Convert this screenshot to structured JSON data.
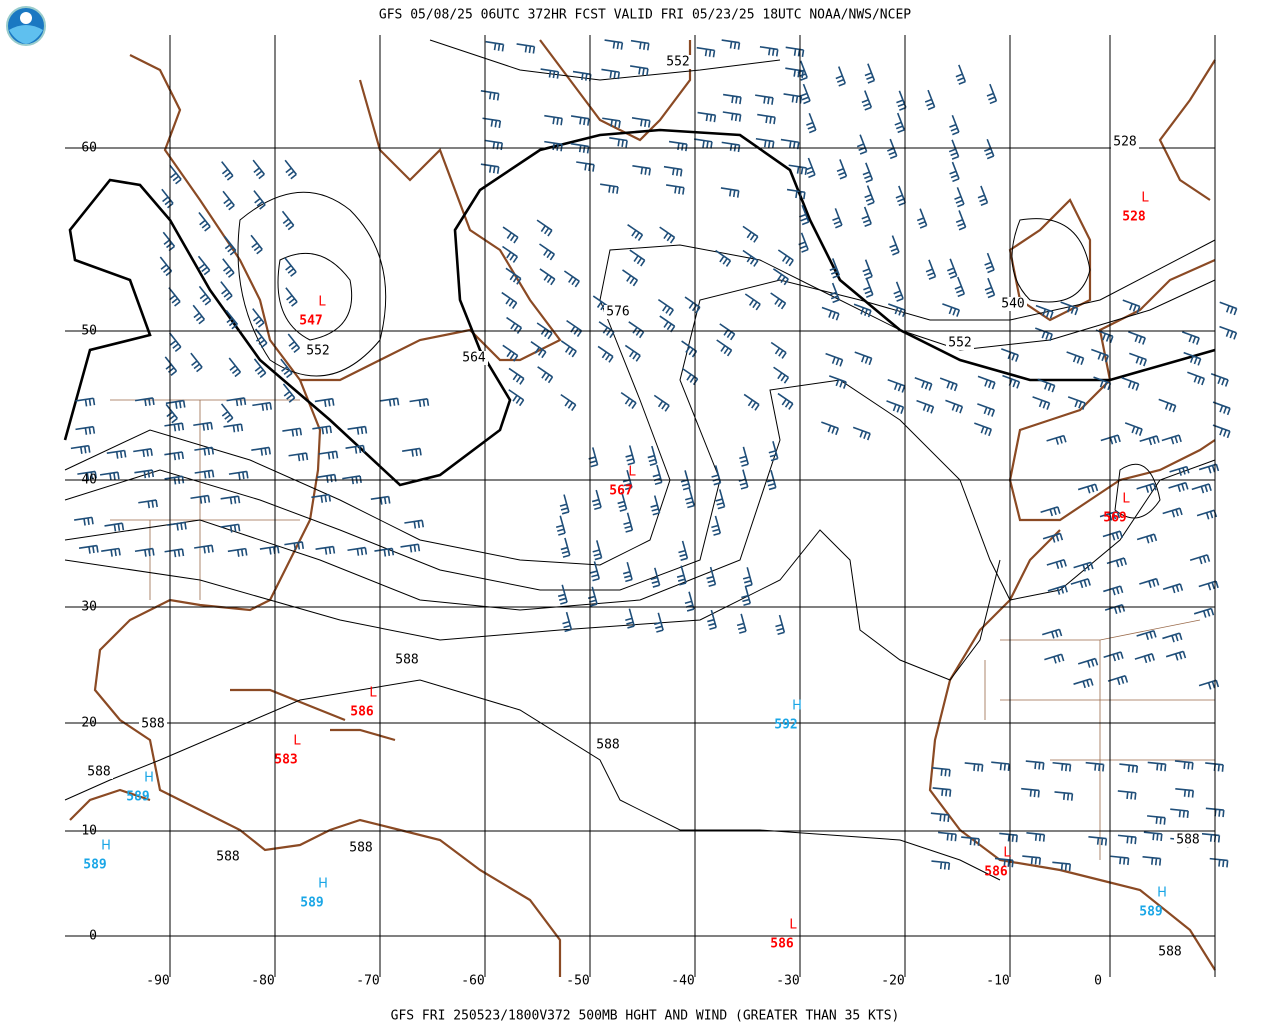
{
  "header": {
    "title": "GFS 05/08/25 06UTC 372HR FCST VALID FRI 05/23/25 18UTC NOAA/NWS/NCEP"
  },
  "footer": {
    "caption": "GFS FRI 250523/1800V372 500MB HGHT AND WIND (GREATER THAN 35 KTS)"
  },
  "map": {
    "lat_labels": [
      60,
      50,
      40,
      30,
      20,
      10,
      0
    ],
    "lon_labels": [
      -90,
      -80,
      -70,
      -60,
      -50,
      -40,
      -30,
      -20,
      -10,
      0
    ],
    "centers": [
      {
        "kind": "L",
        "value": 547
      },
      {
        "kind": "L",
        "value": 567
      },
      {
        "kind": "L",
        "value": 586
      },
      {
        "kind": "L",
        "value": 583
      },
      {
        "kind": "L",
        "value": 528
      },
      {
        "kind": "L",
        "value": 569
      },
      {
        "kind": "L",
        "value": 586
      },
      {
        "kind": "L",
        "value": 586
      },
      {
        "kind": "H",
        "value": 592
      },
      {
        "kind": "H",
        "value": 589
      },
      {
        "kind": "H",
        "value": 589
      },
      {
        "kind": "H",
        "value": 589
      },
      {
        "kind": "H",
        "value": 589
      }
    ],
    "contour_labels": [
      552,
      528,
      576,
      552,
      564,
      540,
      552,
      588,
      588,
      588,
      588,
      588,
      588,
      588,
      588
    ]
  }
}
